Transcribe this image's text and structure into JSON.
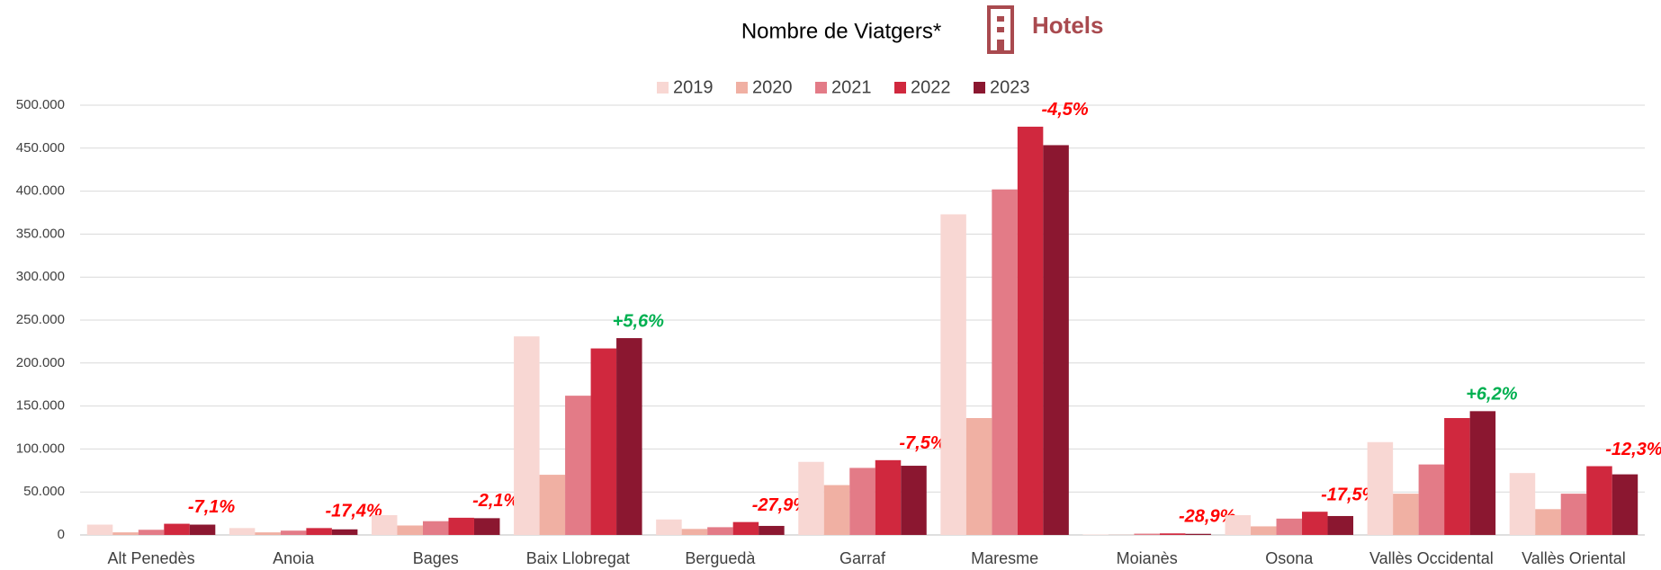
{
  "chart_data": {
    "type": "bar",
    "title": "Nombre de Viatgers*",
    "badge": "Hotels",
    "categories": [
      "Alt Penedès",
      "Anoia",
      "Bages",
      "Baix Llobregat",
      "Berguedà",
      "Garraf",
      "Maresme",
      "Moianès",
      "Osona",
      "Vallès Occidental",
      "Vallès Oriental"
    ],
    "series": [
      {
        "name": "2019",
        "color": "#f8d7d3",
        "values": [
          12000,
          8000,
          23000,
          231000,
          18000,
          85000,
          373000,
          500,
          23000,
          108000,
          72000
        ]
      },
      {
        "name": "2020",
        "color": "#f0b0a3",
        "values": [
          3000,
          3000,
          11000,
          70000,
          7000,
          58000,
          136000,
          200,
          10000,
          48000,
          30000
        ]
      },
      {
        "name": "2021",
        "color": "#e37b87",
        "values": [
          6000,
          5000,
          16000,
          162000,
          9000,
          78000,
          402000,
          1500,
          19000,
          82000,
          48000
        ]
      },
      {
        "name": "2022",
        "color": "#d0283e",
        "values": [
          13000,
          8000,
          20000,
          217000,
          15000,
          87000,
          475000,
          1800,
          27000,
          136000,
          80000
        ]
      },
      {
        "name": "2023",
        "color": "#8b1730",
        "values": [
          12000,
          6500,
          19500,
          229000,
          10500,
          80500,
          453500,
          1300,
          22000,
          144000,
          70500
        ]
      }
    ],
    "annotations": [
      {
        "text": "-7,1%",
        "color": "#ff0000"
      },
      {
        "text": "-17,4%",
        "color": "#ff0000"
      },
      {
        "text": "-2,1%",
        "color": "#ff0000"
      },
      {
        "text": "+5,6%",
        "color": "#00b050"
      },
      {
        "text": "-27,9%",
        "color": "#ff0000"
      },
      {
        "text": "-7,5%",
        "color": "#ff0000"
      },
      {
        "text": "-4,5%",
        "color": "#ff0000"
      },
      {
        "text": "-28,9%",
        "color": "#ff0000"
      },
      {
        "text": "-17,5%",
        "color": "#ff0000"
      },
      {
        "text": "+6,2%",
        "color": "#00b050"
      },
      {
        "text": "-12,3%",
        "color": "#ff0000"
      }
    ],
    "ylim": [
      0,
      500000
    ],
    "yticks": [
      0,
      {
        "value": 50000,
        "label": "50.000"
      },
      {
        "value": 100000,
        "label": "100.000"
      },
      {
        "value": 150000,
        "label": "150.000"
      },
      {
        "value": 200000,
        "label": "200.000"
      },
      {
        "value": 250000,
        "label": "250.000"
      },
      {
        "value": 300000,
        "label": "300.000"
      },
      {
        "value": 350000,
        "label": "350.000"
      },
      {
        "value": 400000,
        "label": "400.000"
      },
      {
        "value": 450000,
        "label": "450.000"
      },
      {
        "value": 500000,
        "label": "500.000"
      }
    ],
    "grid": true,
    "legend": "top"
  }
}
